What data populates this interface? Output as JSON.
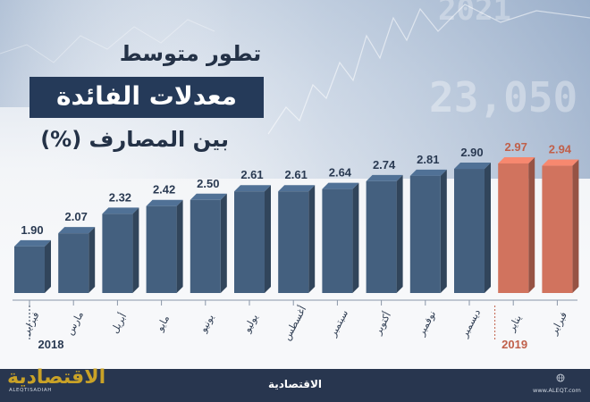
{
  "title": {
    "line1": "تطور متوسط",
    "line2": "معدلات الفائدة",
    "line3": "بين المصارف (%)"
  },
  "background": {
    "ticker_numbers": [
      "23,050",
      "2021"
    ]
  },
  "chart_data": {
    "type": "bar",
    "categories": [
      "فبراير",
      "مارس",
      "أبريل",
      "مايو",
      "يونيو",
      "يوليو",
      "أغسطس",
      "سبتمبر",
      "أكتوبر",
      "نوفمبر",
      "ديسمبر",
      "يناير",
      "فبراير"
    ],
    "values": [
      1.9,
      2.07,
      2.32,
      2.42,
      2.5,
      2.61,
      2.61,
      2.64,
      2.74,
      2.81,
      2.9,
      2.97,
      2.94
    ],
    "value_labels": [
      "1.90",
      "2.07",
      "2.32",
      "2.42",
      "2.50",
      "2.61",
      "2.61",
      "2.64",
      "2.74",
      "2.81",
      "2.90",
      "2.97",
      "2.94"
    ],
    "year_groups": [
      {
        "label": "2018",
        "count": 11,
        "color": "#44607f"
      },
      {
        "label": "2019",
        "count": 2,
        "color": "#d1735e"
      }
    ],
    "colors": {
      "bar_2018": "#44607f",
      "bar_2019": "#d1735e",
      "label_2018": "#2a3a52",
      "label_2019": "#c0604a"
    },
    "ylim": [
      1.3,
      3.05
    ],
    "grid": false,
    "legend": "none"
  },
  "footer": {
    "logo_left": "الاقتصادية",
    "logo_left_sub": "ALEQTISADIAH",
    "logo_center": "الاقتصادية",
    "logo_right": "www.ALEQT.com"
  }
}
